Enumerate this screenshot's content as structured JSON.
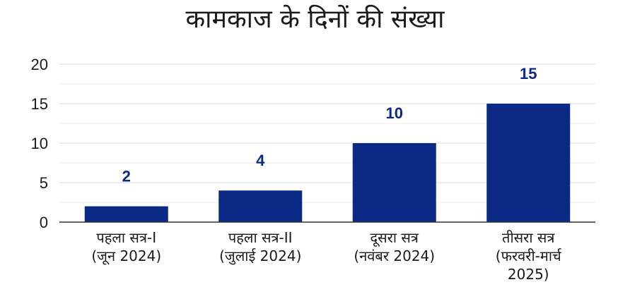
{
  "chart_data": {
    "type": "bar",
    "title": "कामकाज के दिनों की संख्या",
    "xlabel": "",
    "ylabel": "",
    "categories": [
      [
        "पहला सत्र-I",
        "(जून 2024)"
      ],
      [
        "पहला सत्र-II",
        "(जुलाई 2024)"
      ],
      [
        "दूसरा सत्र",
        "(नवंबर 2024)"
      ],
      [
        "तीसरा सत्र",
        "(फरवरी-मार्च",
        "2025)"
      ]
    ],
    "values": [
      2,
      4,
      10,
      15
    ],
    "data_labels": [
      "2",
      "4",
      "10",
      "15"
    ],
    "yticks": [
      "0",
      "5",
      "10",
      "15",
      "20"
    ],
    "ylim": [
      0,
      20
    ],
    "grid": true,
    "legend": "none",
    "colors": {
      "bar": "#0b2a86",
      "data_label": "#0b2a86",
      "grid": "#d9d9d9",
      "axis": "#333333"
    }
  }
}
